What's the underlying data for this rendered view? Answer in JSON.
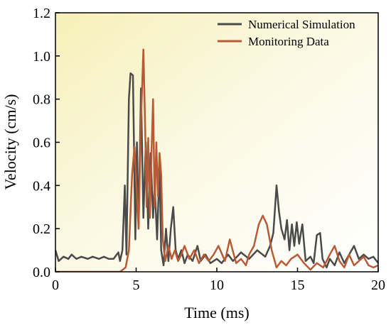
{
  "chart_data": {
    "type": "line",
    "title": "",
    "xlabel": "Time (ms)",
    "ylabel": "Velocity (cm/s)",
    "xlim": [
      0,
      20
    ],
    "ylim": [
      0.0,
      1.2
    ],
    "xticks": [
      0,
      5,
      10,
      15,
      20
    ],
    "yticks": [
      0.0,
      0.2,
      0.4,
      0.6,
      0.8,
      1.0,
      1.2
    ],
    "ytick_labels": [
      "0.0",
      "0.2",
      "0.4",
      "0.6",
      "0.8",
      "1.0",
      "1.2"
    ],
    "grid": false,
    "legend_position": "top-right",
    "background": "yellow-white gradient",
    "series": [
      {
        "name": "Numerical Simulation",
        "color": "#4a4a4a",
        "points": [
          [
            0.0,
            0.1
          ],
          [
            0.2,
            0.05
          ],
          [
            0.5,
            0.07
          ],
          [
            0.8,
            0.06
          ],
          [
            1.0,
            0.08
          ],
          [
            1.3,
            0.06
          ],
          [
            1.6,
            0.07
          ],
          [
            2.0,
            0.06
          ],
          [
            2.3,
            0.07
          ],
          [
            2.7,
            0.06
          ],
          [
            3.0,
            0.07
          ],
          [
            3.3,
            0.06
          ],
          [
            3.6,
            0.06
          ],
          [
            3.9,
            0.09
          ],
          [
            4.0,
            0.05
          ],
          [
            4.15,
            0.1
          ],
          [
            4.3,
            0.4
          ],
          [
            4.4,
            0.08
          ],
          [
            4.55,
            0.8
          ],
          [
            4.65,
            0.92
          ],
          [
            4.8,
            0.91
          ],
          [
            4.95,
            0.15
          ],
          [
            5.05,
            0.6
          ],
          [
            5.15,
            0.2
          ],
          [
            5.3,
            0.85
          ],
          [
            5.45,
            0.25
          ],
          [
            5.6,
            0.6
          ],
          [
            5.75,
            0.2
          ],
          [
            5.9,
            0.55
          ],
          [
            6.05,
            0.25
          ],
          [
            6.15,
            0.4
          ],
          [
            6.3,
            0.15
          ],
          [
            6.45,
            0.5
          ],
          [
            6.55,
            0.1
          ],
          [
            6.7,
            0.03
          ],
          [
            6.85,
            0.2
          ],
          [
            7.0,
            0.05
          ],
          [
            7.15,
            0.2
          ],
          [
            7.3,
            0.3
          ],
          [
            7.45,
            0.1
          ],
          [
            7.6,
            0.06
          ],
          [
            7.8,
            0.1
          ],
          [
            8.0,
            0.04
          ],
          [
            8.2,
            0.08
          ],
          [
            8.5,
            0.05
          ],
          [
            8.8,
            0.12
          ],
          [
            9.0,
            0.05
          ],
          [
            9.3,
            0.08
          ],
          [
            9.6,
            0.04
          ],
          [
            10.0,
            0.06
          ],
          [
            10.3,
            0.04
          ],
          [
            10.7,
            0.08
          ],
          [
            11.0,
            0.05
          ],
          [
            11.5,
            0.09
          ],
          [
            12.0,
            0.06
          ],
          [
            12.5,
            0.1
          ],
          [
            13.0,
            0.07
          ],
          [
            13.3,
            0.12
          ],
          [
            13.5,
            0.18
          ],
          [
            13.7,
            0.4
          ],
          [
            13.85,
            0.28
          ],
          [
            14.0,
            0.2
          ],
          [
            14.2,
            0.15
          ],
          [
            14.35,
            0.24
          ],
          [
            14.5,
            0.1
          ],
          [
            14.65,
            0.22
          ],
          [
            14.8,
            0.12
          ],
          [
            14.95,
            0.23
          ],
          [
            15.1,
            0.13
          ],
          [
            15.3,
            0.22
          ],
          [
            15.5,
            0.05
          ],
          [
            15.8,
            0.07
          ],
          [
            16.0,
            0.04
          ],
          [
            16.2,
            0.17
          ],
          [
            16.4,
            0.18
          ],
          [
            16.55,
            0.06
          ],
          [
            16.8,
            0.02
          ],
          [
            17.0,
            0.06
          ],
          [
            17.3,
            0.03
          ],
          [
            17.6,
            0.09
          ],
          [
            17.9,
            0.04
          ],
          [
            18.2,
            0.08
          ],
          [
            18.5,
            0.12
          ],
          [
            18.8,
            0.06
          ],
          [
            19.1,
            0.08
          ],
          [
            19.4,
            0.06
          ],
          [
            19.7,
            0.07
          ],
          [
            20.0,
            0.04
          ]
        ]
      },
      {
        "name": "Monitoring Data",
        "color": "#b85a35",
        "points": [
          [
            0.0,
            0.0
          ],
          [
            1.0,
            0.0
          ],
          [
            2.0,
            0.0
          ],
          [
            3.0,
            0.0
          ],
          [
            4.0,
            0.0
          ],
          [
            4.35,
            0.02
          ],
          [
            4.55,
            0.1
          ],
          [
            4.75,
            0.45
          ],
          [
            4.9,
            0.58
          ],
          [
            5.05,
            0.35
          ],
          [
            5.15,
            0.2
          ],
          [
            5.3,
            0.7
          ],
          [
            5.45,
            1.03
          ],
          [
            5.55,
            0.7
          ],
          [
            5.65,
            0.3
          ],
          [
            5.75,
            0.62
          ],
          [
            5.85,
            0.25
          ],
          [
            5.95,
            0.55
          ],
          [
            6.05,
            0.8
          ],
          [
            6.15,
            0.3
          ],
          [
            6.25,
            0.6
          ],
          [
            6.35,
            0.35
          ],
          [
            6.45,
            0.55
          ],
          [
            6.55,
            0.45
          ],
          [
            6.65,
            0.15
          ],
          [
            6.8,
            0.05
          ],
          [
            7.0,
            0.12
          ],
          [
            7.2,
            0.06
          ],
          [
            7.4,
            0.1
          ],
          [
            7.6,
            0.05
          ],
          [
            7.8,
            0.08
          ],
          [
            8.0,
            0.12
          ],
          [
            8.3,
            0.06
          ],
          [
            8.6,
            0.1
          ],
          [
            8.9,
            0.04
          ],
          [
            9.2,
            0.08
          ],
          [
            9.5,
            0.05
          ],
          [
            9.8,
            0.08
          ],
          [
            10.1,
            0.12
          ],
          [
            10.5,
            0.05
          ],
          [
            10.8,
            0.15
          ],
          [
            11.2,
            0.04
          ],
          [
            11.5,
            0.06
          ],
          [
            11.8,
            0.03
          ],
          [
            12.0,
            0.08
          ],
          [
            12.3,
            0.12
          ],
          [
            12.6,
            0.22
          ],
          [
            12.85,
            0.26
          ],
          [
            13.1,
            0.22
          ],
          [
            13.4,
            0.1
          ],
          [
            13.7,
            0.02
          ],
          [
            14.0,
            0.05
          ],
          [
            14.3,
            0.03
          ],
          [
            14.6,
            0.06
          ],
          [
            15.0,
            0.08
          ],
          [
            15.4,
            0.04
          ],
          [
            15.8,
            0.01
          ],
          [
            16.2,
            0.04
          ],
          [
            16.6,
            0.02
          ],
          [
            17.0,
            0.08
          ],
          [
            17.3,
            0.12
          ],
          [
            17.6,
            0.05
          ],
          [
            17.9,
            0.02
          ],
          [
            18.2,
            0.08
          ],
          [
            18.5,
            0.03
          ],
          [
            18.8,
            0.05
          ],
          [
            19.1,
            0.07
          ],
          [
            19.4,
            0.03
          ],
          [
            19.7,
            0.02
          ],
          [
            20.0,
            0.03
          ]
        ]
      }
    ]
  }
}
